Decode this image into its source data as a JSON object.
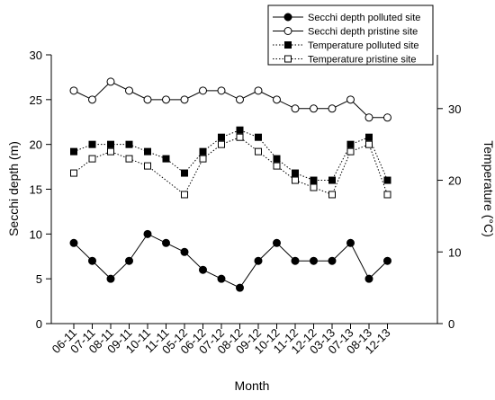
{
  "chart_data": {
    "type": "line",
    "xlabel": "Month",
    "ylabel_left": "Secchi depth (m)",
    "ylabel_right": "Temperature (°C)",
    "categories": [
      "06-11",
      "07-11",
      "08-11",
      "09-11",
      "10-11",
      "11-11",
      "05-12",
      "06-12",
      "07-12",
      "08-12",
      "09-12",
      "10-12",
      "11-12",
      "12-12",
      "03-13",
      "07-13",
      "08-13",
      "12-13"
    ],
    "ylim_left": [
      0,
      30
    ],
    "yticks_left": [
      0,
      5,
      10,
      15,
      20,
      25,
      30
    ],
    "ylim_right": [
      0,
      37.5
    ],
    "yticks_right": [
      0,
      10,
      20,
      30
    ],
    "grid": false,
    "legend_position": "top-right",
    "series": [
      {
        "name": "Secchi depth polluted site",
        "axis": "left",
        "marker": "filled-circle",
        "line": "solid",
        "values": [
          9,
          7,
          5,
          7,
          10,
          9,
          8,
          6,
          5,
          4,
          7,
          9,
          7,
          7,
          7,
          9,
          5,
          7
        ]
      },
      {
        "name": "Secchi depth pristine site",
        "axis": "left",
        "marker": "open-circle",
        "line": "solid",
        "values": [
          26,
          25,
          27,
          26,
          25,
          25,
          25,
          26,
          26,
          25,
          26,
          25,
          24,
          24,
          24,
          25,
          23,
          23
        ]
      },
      {
        "name": "Temperature polluted site",
        "axis": "right",
        "marker": "filled-square",
        "line": "dotted",
        "values": [
          24,
          25,
          25,
          25,
          24,
          23,
          21,
          24,
          26,
          27,
          26,
          23,
          21,
          20,
          20,
          25,
          26,
          20
        ]
      },
      {
        "name": "Temperature pristine site",
        "axis": "right",
        "marker": "open-square",
        "line": "dotted",
        "values": [
          21,
          23,
          24,
          23,
          22,
          null,
          18,
          23,
          25,
          26,
          24,
          22,
          20,
          19,
          18,
          24,
          25,
          18
        ]
      }
    ]
  }
}
